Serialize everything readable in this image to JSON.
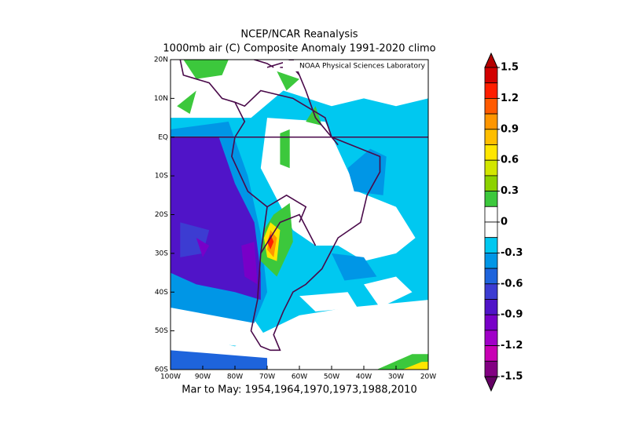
{
  "header": {
    "title": "NCEP/NCAR Reanalysis",
    "subtitle": "1000mb air (C) Composite Anomaly 1991-2020 climo"
  },
  "map": {
    "lab": "NOAA Physical Sciences Laboratory",
    "xlim": [
      -100,
      -20
    ],
    "ylim": [
      -60,
      20
    ],
    "lon_ticks": [
      {
        "value": -100,
        "label": "100W"
      },
      {
        "value": -90,
        "label": "90W"
      },
      {
        "value": -80,
        "label": "80W"
      },
      {
        "value": -70,
        "label": "70W"
      },
      {
        "value": -60,
        "label": "60W"
      },
      {
        "value": -50,
        "label": "50W"
      },
      {
        "value": -40,
        "label": "40W"
      },
      {
        "value": -30,
        "label": "30W"
      },
      {
        "value": -20,
        "label": "20W"
      }
    ],
    "lat_ticks": [
      {
        "value": 20,
        "label": "20N"
      },
      {
        "value": 10,
        "label": "10N"
      },
      {
        "value": 0,
        "label": "EQ"
      },
      {
        "value": -10,
        "label": "10S"
      },
      {
        "value": -20,
        "label": "20S"
      },
      {
        "value": -30,
        "label": "30S"
      },
      {
        "value": -40,
        "label": "40S"
      },
      {
        "value": -50,
        "label": "50S"
      },
      {
        "value": -60,
        "label": "60S"
      }
    ],
    "footer": "Mar to May: 1954,1964,1970,1973,1988,2010"
  },
  "colorbar": {
    "range": [
      -1.5,
      1.5
    ],
    "ticks": [
      1.5,
      1.2,
      0.9,
      0.6,
      0.3,
      0,
      -0.3,
      -0.6,
      -0.9,
      -1.2,
      -1.5
    ],
    "colors": [
      "#d20000",
      "#ff1e00",
      "#ff5a00",
      "#ff9600",
      "#ffbe00",
      "#ffe600",
      "#d2e600",
      "#8cd200",
      "#3cc83c",
      "#ffffff",
      "#ffffff",
      "#00c8f0",
      "#0096e6",
      "#1e64dc",
      "#3c3cd2",
      "#5014c8",
      "#7800c8",
      "#a000c8",
      "#c800b4",
      "#820082"
    ],
    "over_color": "#b40000",
    "under_color": "#640064"
  }
}
